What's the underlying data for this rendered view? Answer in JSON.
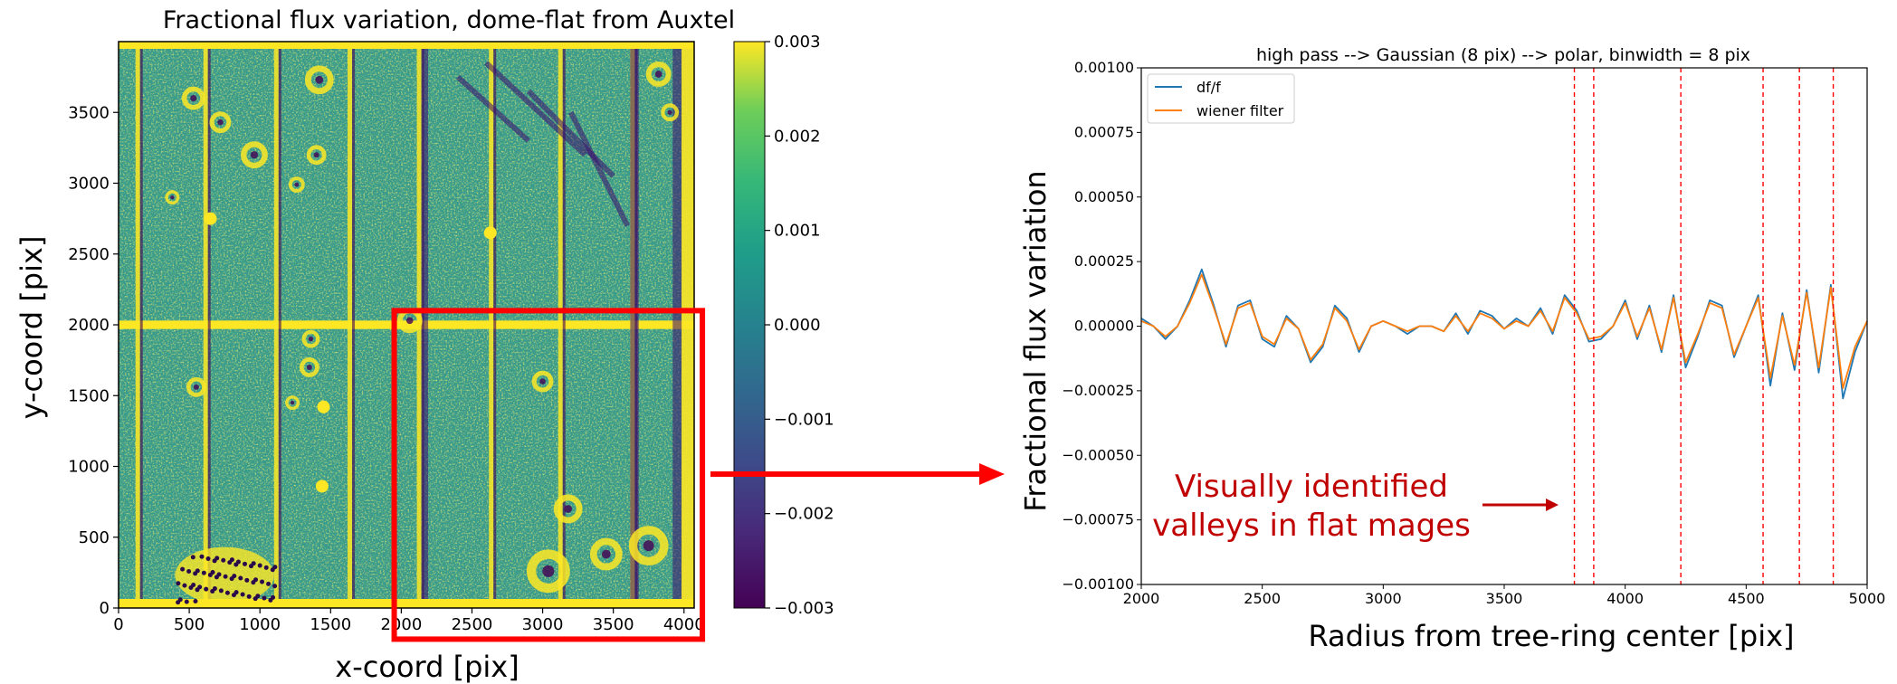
{
  "chart_data": [
    {
      "type": "heatmap",
      "title": "Fractional flux variation, dome-flat from Auxtel",
      "xlabel": "x-coord [pix]",
      "ylabel": "y-coord [pix]",
      "xlim": [
        0,
        4072
      ],
      "ylim": [
        0,
        4000
      ],
      "xticks": [
        0,
        500,
        1000,
        1500,
        2000,
        2500,
        3000,
        3500,
        4000
      ],
      "yticks": [
        0,
        500,
        1000,
        1500,
        2000,
        2500,
        3000,
        3500
      ],
      "colorbar": {
        "range": [
          -0.003,
          0.003
        ],
        "ticks": [
          0.003,
          0.002,
          0.001,
          0.0,
          -0.001,
          -0.002,
          -0.003
        ],
        "tick_labels": [
          "0.003",
          "0.002",
          "0.001",
          "0.000",
          "−0.001",
          "−0.002",
          "−0.003"
        ],
        "colormap": "viridis"
      },
      "highlight_box": {
        "x_range": [
          1950,
          4130
        ],
        "y_range": [
          -220,
          2100
        ],
        "color": "#ff0000"
      }
    },
    {
      "type": "line",
      "title": "high pass --> Gaussian (8 pix) --> polar, binwidth = 8 pix",
      "xlabel": "Radius from tree-ring center [pix]",
      "ylabel": "Fractional flux variation",
      "xlim": [
        2000,
        5000
      ],
      "ylim": [
        -0.001,
        0.001
      ],
      "xticks": [
        2000,
        2500,
        3000,
        3500,
        4000,
        4500,
        5000
      ],
      "yticks": [
        0.001,
        0.00075,
        0.0005,
        0.00025,
        0.0,
        -0.00025,
        -0.0005,
        -0.00075,
        -0.001
      ],
      "ytick_labels": [
        "0.00100",
        "0.00075",
        "0.00050",
        "0.00025",
        "0.00000",
        "−0.00025",
        "−0.00050",
        "−0.00075",
        "−0.00100"
      ],
      "legend": "top-left",
      "grid": false,
      "x": [
        2000,
        2050,
        2100,
        2150,
        2200,
        2250,
        2300,
        2350,
        2400,
        2450,
        2500,
        2550,
        2600,
        2650,
        2700,
        2750,
        2800,
        2850,
        2900,
        2950,
        3000,
        3050,
        3100,
        3150,
        3200,
        3250,
        3300,
        3350,
        3400,
        3450,
        3500,
        3550,
        3600,
        3650,
        3700,
        3750,
        3800,
        3850,
        3900,
        3950,
        4000,
        4050,
        4100,
        4150,
        4200,
        4250,
        4300,
        4350,
        4400,
        4450,
        4500,
        4550,
        4600,
        4650,
        4700,
        4750,
        4800,
        4850,
        4900,
        4950,
        5000
      ],
      "series": [
        {
          "name": "df/f",
          "color": "#1f77b4",
          "values": [
            3e-05,
            0.0,
            -5e-05,
            0.0,
            0.0001,
            0.00022,
            8e-05,
            -8e-05,
            8e-05,
            0.0001,
            -5e-05,
            -8e-05,
            4e-05,
            -1e-05,
            -0.00014,
            -8e-05,
            8e-05,
            3e-05,
            -0.0001,
            0.0,
            2e-05,
            0.0,
            -3e-05,
            0.0,
            0.0,
            -2e-05,
            5e-05,
            -3e-05,
            6e-05,
            4e-05,
            -1e-05,
            3e-05,
            0.0,
            7e-05,
            -3e-05,
            0.00012,
            6e-05,
            -6e-05,
            -5e-05,
            0.0,
            0.0001,
            -5e-05,
            8e-05,
            -0.0001,
            0.00012,
            -0.00016,
            -4e-05,
            0.0001,
            8e-05,
            -0.00012,
            0.0,
            0.00012,
            -0.00023,
            5e-05,
            -0.00017,
            0.00014,
            -0.00018,
            0.00016,
            -0.00028,
            -0.0001,
            2e-05
          ]
        },
        {
          "name": "wiener filter",
          "color": "#ff7f0e",
          "values": [
            2e-05,
            0.0,
            -4e-05,
            0.0,
            9e-05,
            0.0002,
            7e-05,
            -7e-05,
            7e-05,
            9e-05,
            -4e-05,
            -7e-05,
            3e-05,
            -1e-05,
            -0.00013,
            -7e-05,
            7e-05,
            2e-05,
            -9e-05,
            0.0,
            2e-05,
            0.0,
            -2e-05,
            0.0,
            0.0,
            -2e-05,
            4e-05,
            -2e-05,
            5e-05,
            3e-05,
            -1e-05,
            2e-05,
            0.0,
            6e-05,
            -2e-05,
            0.00011,
            5e-05,
            -5e-05,
            -4e-05,
            0.0,
            9e-05,
            -4e-05,
            7e-05,
            -9e-05,
            0.00011,
            -0.00014,
            -3e-05,
            9e-05,
            7e-05,
            -0.00011,
            0.0,
            0.00011,
            -0.0002,
            4e-05,
            -0.00015,
            0.00013,
            -0.00016,
            0.00015,
            -0.00024,
            -8e-05,
            2e-05
          ]
        }
      ],
      "vlines": [
        3790,
        3870,
        4230,
        4570,
        4720,
        4860
      ],
      "vline_color": "#ff0000",
      "annotation": {
        "line1": "Visually identified",
        "line2": "valleys in flat mages"
      }
    }
  ],
  "colors": {
    "highlight": "#ff0000",
    "annotation": "#c00000",
    "vline": "#ff0000"
  }
}
